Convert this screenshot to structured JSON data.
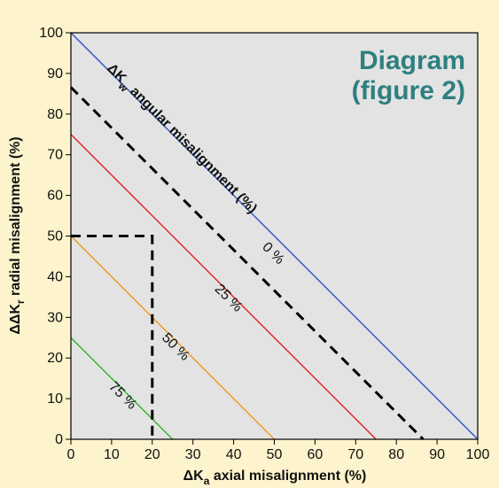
{
  "chart_data": {
    "type": "line",
    "title_line1": "Diagram",
    "title_line2": "(figure 2)",
    "xlabel_prefix": "ΔK",
    "xlabel_sub": "a",
    "xlabel_suffix": " axial misalignment (%)",
    "ylabel_prefix": "ΔΔK",
    "ylabel_sub": "r",
    "ylabel_suffix": " radial misalignment (%)",
    "annotation_prefix": "ΔK",
    "annotation_sub": "w",
    "annotation_suffix": " angular misalignment (%)",
    "xlim": [
      0,
      100
    ],
    "ylim": [
      0,
      100
    ],
    "xticks": [
      "0",
      "10",
      "20",
      "30",
      "40",
      "50",
      "60",
      "70",
      "80",
      "90",
      "100"
    ],
    "yticks": [
      "0",
      "10",
      "20",
      "30",
      "40",
      "50",
      "60",
      "70",
      "80",
      "90",
      "100"
    ],
    "grid": false,
    "plot_background": "#e3e3e3",
    "series": [
      {
        "name": "0 %",
        "color": "#2f55c8",
        "dashed": false,
        "points": [
          [
            0,
            100
          ],
          [
            100,
            0
          ]
        ],
        "label_at": [
          49,
          45
        ]
      },
      {
        "name": "",
        "color": "#000000",
        "dashed": true,
        "points": [
          [
            0,
            86.6
          ],
          [
            86.6,
            0
          ]
        ]
      },
      {
        "name": "25 %",
        "color": "#e02020",
        "dashed": false,
        "points": [
          [
            0,
            75
          ],
          [
            75,
            0
          ]
        ],
        "label_at": [
          38,
          34
        ]
      },
      {
        "name": "50 %",
        "color": "#f39a1c",
        "dashed": false,
        "points": [
          [
            0,
            50
          ],
          [
            50,
            0
          ]
        ],
        "label_at": [
          25,
          22
        ]
      },
      {
        "name": "75 %",
        "color": "#2fb52f",
        "dashed": false,
        "points": [
          [
            0,
            25
          ],
          [
            25,
            0
          ]
        ],
        "label_at": [
          12,
          10
        ]
      },
      {
        "name": "",
        "color": "#000000",
        "dashed": true,
        "points": [
          [
            0,
            50
          ],
          [
            20,
            50
          ],
          [
            20,
            0
          ]
        ]
      }
    ]
  }
}
